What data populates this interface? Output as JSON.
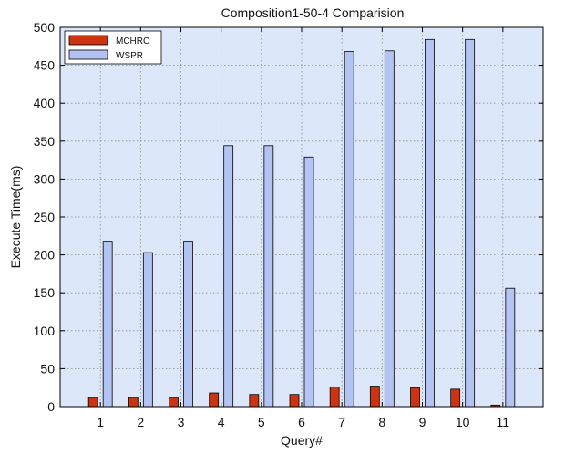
{
  "chart_data": {
    "type": "bar",
    "title": "Composition1-50-4 Comparision",
    "xlabel": "Query#",
    "ylabel": "Execute Time(ms)",
    "categories": [
      "1",
      "2",
      "3",
      "4",
      "5",
      "6",
      "7",
      "8",
      "9",
      "10",
      "11"
    ],
    "ylim": [
      0,
      500
    ],
    "yticks": [
      0,
      50,
      100,
      150,
      200,
      250,
      300,
      350,
      400,
      450,
      500
    ],
    "grid": true,
    "legend_position": "top-left",
    "series": [
      {
        "name": "MCHRC",
        "color": "#cc3311",
        "values": [
          12,
          12,
          12,
          18,
          16,
          16,
          26,
          27,
          25,
          23,
          2
        ]
      },
      {
        "name": "WSPR",
        "color": "#b4c4f2",
        "values": [
          218,
          203,
          218,
          344,
          344,
          329,
          468,
          469,
          484,
          484,
          156
        ]
      }
    ],
    "plot_background": "#dce8fa"
  }
}
